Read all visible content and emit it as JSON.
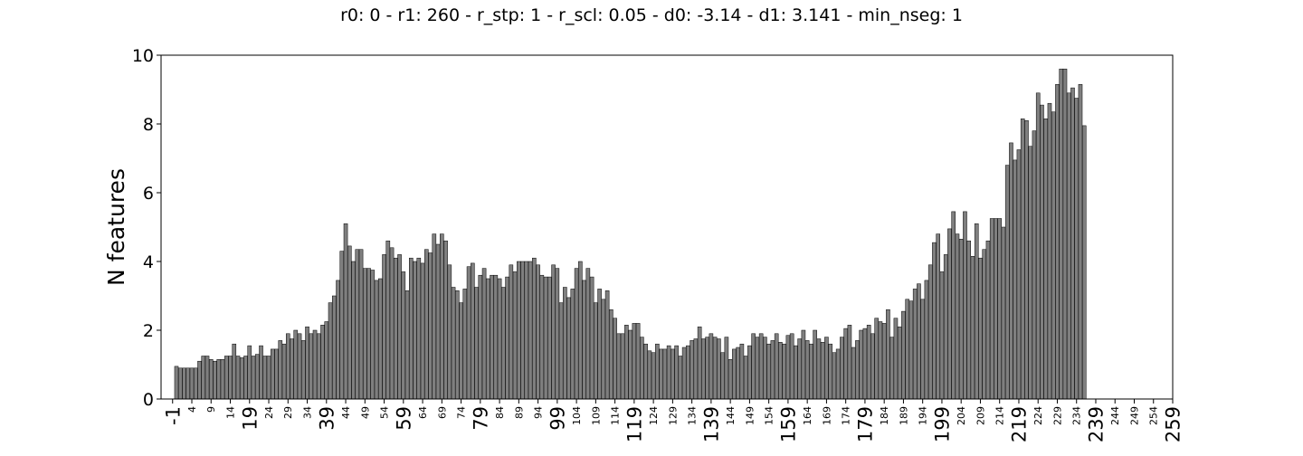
{
  "chart_data": {
    "type": "bar",
    "title": "r0: 0 - r1: 260 - r_stp: 1 - r_scl: 0.05 - d0: -3.14 - d1: 3.141 - min_nseg: 1",
    "xlabel": "",
    "ylabel": "N features",
    "ylim": [
      0,
      10
    ],
    "xlim": [
      -4,
      259
    ],
    "yticks": [
      0,
      2,
      4,
      6,
      8,
      10
    ],
    "grid": false,
    "legend": "none",
    "bar_color": "#7f7f7f",
    "bar_edge_color": "#000000",
    "x_start": 0,
    "x_step": 1,
    "x_tick_labels_major": [
      "-1",
      "19",
      "39",
      "59",
      "79",
      "99",
      "119",
      "139",
      "159",
      "179",
      "199",
      "219",
      "239",
      "259"
    ],
    "x_tick_labels_minor": [
      "4",
      "9",
      "14",
      "24",
      "29",
      "34",
      "44",
      "49",
      "54",
      "64",
      "69",
      "74",
      "84",
      "89",
      "94",
      "104",
      "109",
      "114",
      "124",
      "129",
      "134",
      "144",
      "149",
      "154",
      "164",
      "169",
      "174",
      "184",
      "189",
      "194",
      "204",
      "209",
      "214",
      "224",
      "229",
      "234",
      "244",
      "249",
      "254"
    ],
    "values": [
      0.95,
      0.9,
      0.9,
      0.9,
      0.9,
      0.9,
      1.1,
      1.25,
      1.25,
      1.15,
      1.1,
      1.15,
      1.15,
      1.25,
      1.25,
      1.6,
      1.25,
      1.2,
      1.25,
      1.55,
      1.25,
      1.3,
      1.55,
      1.25,
      1.25,
      1.45,
      1.45,
      1.7,
      1.6,
      1.9,
      1.75,
      2.0,
      1.9,
      1.7,
      2.1,
      1.9,
      2.0,
      1.9,
      2.15,
      2.25,
      2.8,
      3.0,
      3.45,
      4.3,
      5.1,
      4.45,
      4.0,
      4.35,
      4.35,
      3.8,
      3.8,
      3.75,
      3.45,
      3.5,
      4.2,
      4.6,
      4.4,
      4.1,
      4.2,
      3.7,
      3.15,
      4.1,
      4.0,
      4.1,
      3.95,
      4.35,
      4.25,
      4.8,
      4.5,
      4.8,
      4.6,
      3.9,
      3.25,
      3.15,
      2.8,
      3.2,
      3.85,
      3.95,
      3.25,
      3.6,
      3.8,
      3.5,
      3.6,
      3.6,
      3.5,
      3.25,
      3.55,
      3.9,
      3.7,
      4.0,
      4.0,
      4.0,
      4.0,
      4.1,
      3.9,
      3.6,
      3.55,
      3.55,
      3.9,
      3.8,
      2.8,
      3.25,
      2.95,
      3.2,
      3.8,
      4.0,
      3.45,
      3.8,
      3.55,
      2.8,
      3.2,
      2.9,
      3.15,
      2.6,
      2.35,
      1.9,
      1.9,
      2.15,
      2.0,
      2.2,
      2.2,
      1.8,
      1.6,
      1.4,
      1.35,
      1.6,
      1.45,
      1.45,
      1.55,
      1.45,
      1.55,
      1.25,
      1.5,
      1.55,
      1.7,
      1.75,
      2.1,
      1.75,
      1.8,
      1.9,
      1.8,
      1.75,
      1.35,
      1.8,
      1.15,
      1.45,
      1.5,
      1.6,
      1.25,
      1.55,
      1.9,
      1.8,
      1.9,
      1.8,
      1.6,
      1.7,
      1.9,
      1.65,
      1.6,
      1.85,
      1.9,
      1.55,
      1.75,
      2.0,
      1.7,
      1.6,
      2.0,
      1.75,
      1.65,
      1.8,
      1.6,
      1.35,
      1.45,
      1.8,
      2.05,
      2.15,
      1.5,
      1.7,
      2.0,
      2.05,
      2.15,
      1.9,
      2.35,
      2.25,
      2.2,
      2.6,
      1.8,
      2.35,
      2.1,
      2.55,
      2.9,
      2.85,
      3.2,
      3.35,
      2.9,
      3.45,
      3.9,
      4.55,
      4.8,
      3.7,
      4.2,
      4.95,
      5.45,
      4.8,
      4.65,
      5.45,
      4.6,
      4.15,
      5.1,
      4.1,
      4.35,
      4.6,
      5.25,
      5.25,
      5.25,
      5.0,
      6.8,
      7.45,
      6.95,
      7.25,
      8.15,
      8.1,
      7.35,
      7.8,
      8.9,
      8.55,
      8.15,
      8.6,
      8.35,
      9.15,
      9.6,
      9.6,
      8.9,
      9.05,
      8.75,
      9.15,
      7.95
    ]
  }
}
